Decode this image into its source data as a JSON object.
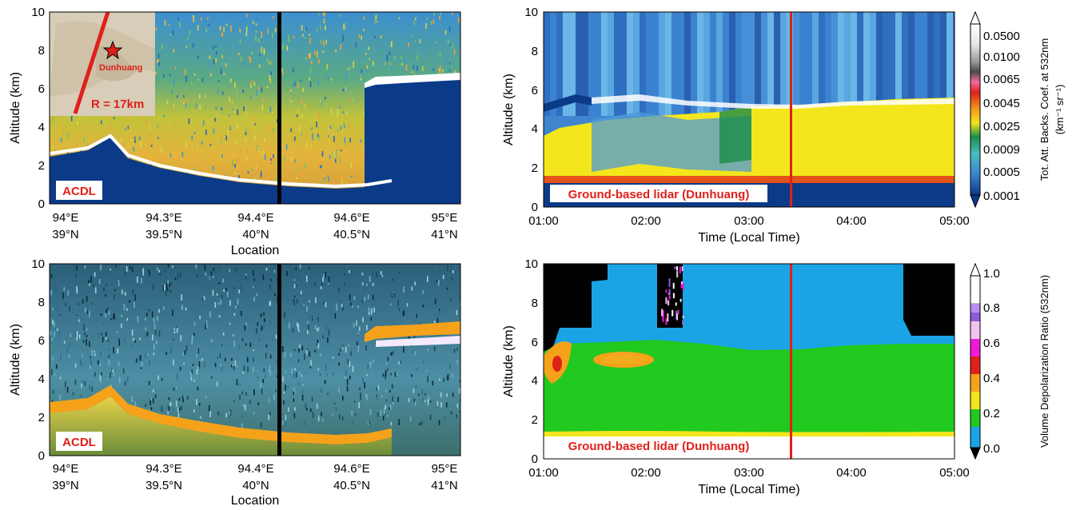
{
  "panels": {
    "top_left": {
      "ylabel": "Altitude (km)",
      "xlabel": "Location",
      "y_ticks": [
        "0",
        "2",
        "4",
        "6",
        "8",
        "10"
      ],
      "x_ticks_lon": [
        "94°E",
        "94.3°E",
        "94.4°E",
        "94.6°E",
        "95°E"
      ],
      "x_ticks_lat": [
        "39°N",
        "39.5°N",
        "40°N",
        "40.5°N",
        "41°N"
      ],
      "badge": "ACDL",
      "inset_place": "Dunhuang",
      "inset_radius": "R = 17km"
    },
    "bottom_left": {
      "ylabel": "Altitude (km)",
      "xlabel": "Location",
      "y_ticks": [
        "0",
        "2",
        "4",
        "6",
        "8",
        "10"
      ],
      "x_ticks_lon": [
        "94°E",
        "94.3°E",
        "94.4°E",
        "94.6°E",
        "95°E"
      ],
      "x_ticks_lat": [
        "39°N",
        "39.5°N",
        "40°N",
        "40.5°N",
        "41°N"
      ],
      "badge": "ACDL"
    },
    "top_right": {
      "ylabel": "Altitude (km)",
      "xlabel": "Time (Local Time)",
      "y_ticks": [
        "0",
        "2",
        "4",
        "6",
        "8",
        "10"
      ],
      "x_ticks": [
        "01:00",
        "02:00",
        "03:00",
        "04:00",
        "05:00"
      ],
      "badge": "Ground-based lidar (Dunhuang)",
      "colorbar_label": "Tot. Att. Backs. Coef. at 532nm",
      "colorbar_unit": "(km⁻¹ sr⁻¹)",
      "colorbar_ticks": [
        "0.0500",
        "0.0100",
        "0.0065",
        "0.0045",
        "0.0025",
        "0.0009",
        "0.0005",
        "0.0001"
      ]
    },
    "bottom_right": {
      "ylabel": "Altitude (km)",
      "xlabel": "Time (Local Time)",
      "y_ticks": [
        "0",
        "2",
        "4",
        "6",
        "8",
        "10"
      ],
      "x_ticks": [
        "01:00",
        "02:00",
        "03:00",
        "04:00",
        "05:00"
      ],
      "badge": "Ground-based lidar (Dunhuang)",
      "colorbar_label": "Volume Depolarization Ratio (532nm)",
      "colorbar_ticks": [
        "1.0",
        "0.8",
        "0.6",
        "0.4",
        "0.2",
        "0.0"
      ]
    }
  },
  "chart_data": [
    {
      "type": "heatmap",
      "panel": "top_left",
      "xlabel": "Location",
      "ylabel": "Altitude (km)",
      "ylim": [
        0,
        10
      ],
      "x_ticks": [
        "94°E 39°N",
        "94.3°E 39.5°N",
        "94.4°E 40°N",
        "94.6°E 40.5°N",
        "95°E 41°N"
      ],
      "marker_at_tick_fraction": 0.565,
      "surface_altitude_km": [
        2.4,
        2.6,
        3.3,
        2.0,
        1.3,
        1.0,
        0.9,
        0.8,
        0.9,
        0.9
      ],
      "cloud_top_km": 6.5
    },
    {
      "type": "heatmap",
      "panel": "bottom_left",
      "xlabel": "Location",
      "ylabel": "Altitude (km)",
      "ylim": [
        0,
        10
      ]
    },
    {
      "type": "heatmap",
      "panel": "top_right",
      "xlabel": "Time (Local Time)",
      "ylabel": "Altitude (km)",
      "ylim": [
        0,
        10
      ],
      "xlim": [
        "01:00",
        "05:00"
      ],
      "marker_time": "03:25",
      "dust_layer_km": [
        1.2,
        5.3
      ],
      "colorbar": [
        0.0001,
        0.0005,
        0.0009,
        0.0025,
        0.0045,
        0.0065,
        0.01,
        0.05
      ]
    },
    {
      "type": "heatmap",
      "panel": "bottom_right",
      "xlabel": "Time (Local Time)",
      "ylabel": "Altitude (km)",
      "ylim": [
        0,
        10
      ],
      "xlim": [
        "01:00",
        "05:00"
      ],
      "marker_time": "03:25",
      "depol_layer_km": [
        1.2,
        5.5
      ],
      "colorbar": [
        0.0,
        0.2,
        0.4,
        0.6,
        0.8,
        1.0
      ]
    }
  ],
  "colors": {
    "red_marker": "#e0201a",
    "dust_yellow": "#f4e61c",
    "ground_blue": "#0b3a88",
    "depol_green": "#22c91e",
    "depol_blue": "#1aa4e6"
  }
}
